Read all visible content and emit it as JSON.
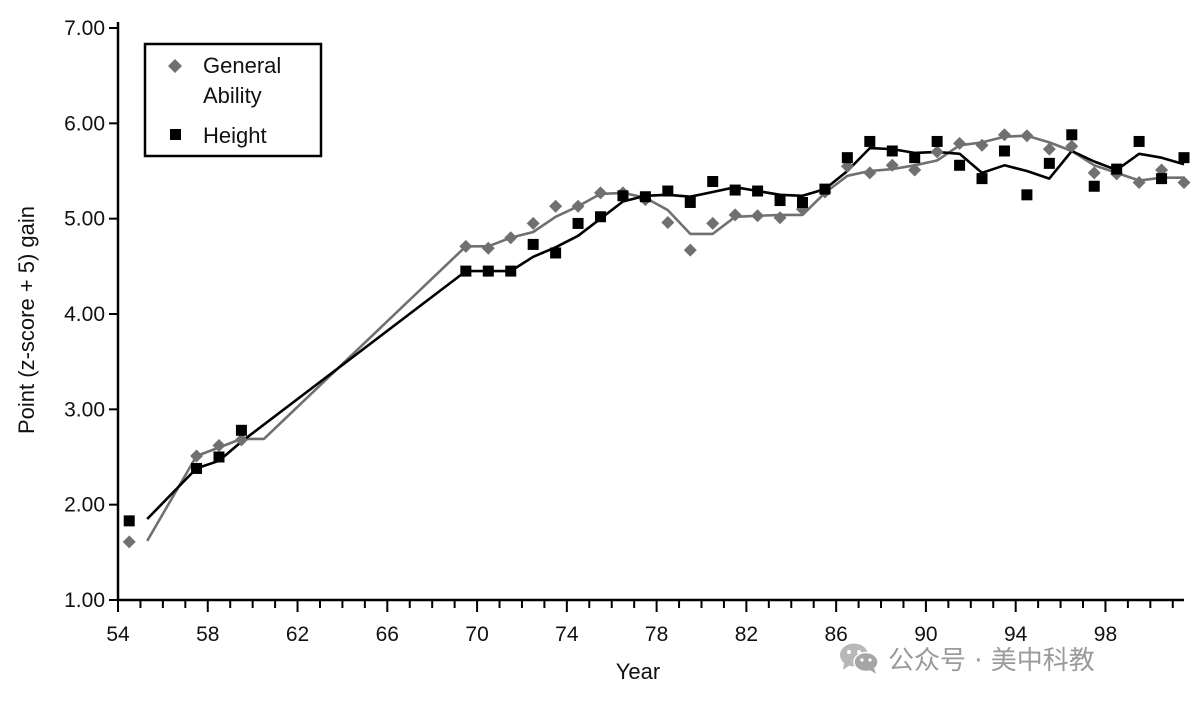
{
  "watermark": {
    "text": "公众号 · 美中科教",
    "icon": "wechat-icon"
  },
  "chart_data": {
    "type": "scatter",
    "xlabel": "Year",
    "ylabel": "Point (z-score + 5) gain",
    "xlim": [
      54,
      101.5
    ],
    "ylim": [
      1.0,
      7.0
    ],
    "xticks": [
      54,
      58,
      62,
      66,
      70,
      74,
      78,
      82,
      86,
      90,
      94,
      98
    ],
    "yticks": [
      1.0,
      2.0,
      3.0,
      4.0,
      5.0,
      6.0,
      7.0
    ],
    "ytick_format": "fixed2",
    "grid": false,
    "legend_position": "top-left",
    "series": [
      {
        "name": "General Ability",
        "marker": "diamond",
        "color": "#707070",
        "points": [
          [
            54.5,
            1.61
          ],
          [
            57.5,
            2.51
          ],
          [
            58.5,
            2.62
          ],
          [
            59.5,
            2.68
          ],
          [
            69.5,
            4.71
          ],
          [
            70.5,
            4.69
          ],
          [
            71.5,
            4.8
          ],
          [
            72.5,
            4.95
          ],
          [
            73.5,
            5.13
          ],
          [
            74.5,
            5.13
          ],
          [
            75.5,
            5.27
          ],
          [
            76.5,
            5.27
          ],
          [
            77.5,
            5.2
          ],
          [
            78.5,
            4.96
          ],
          [
            79.5,
            4.67
          ],
          [
            80.5,
            4.95
          ],
          [
            81.5,
            5.04
          ],
          [
            82.5,
            5.03
          ],
          [
            83.5,
            5.01
          ],
          [
            84.5,
            5.1
          ],
          [
            85.5,
            5.28
          ],
          [
            86.5,
            5.55
          ],
          [
            87.5,
            5.48
          ],
          [
            88.5,
            5.56
          ],
          [
            89.5,
            5.51
          ],
          [
            90.5,
            5.7
          ],
          [
            91.5,
            5.79
          ],
          [
            92.5,
            5.77
          ],
          [
            93.5,
            5.88
          ],
          [
            94.5,
            5.87
          ],
          [
            95.5,
            5.73
          ],
          [
            96.5,
            5.76
          ],
          [
            97.5,
            5.48
          ],
          [
            98.5,
            5.47
          ],
          [
            99.5,
            5.38
          ],
          [
            100.5,
            5.51
          ],
          [
            101.5,
            5.38
          ]
        ],
        "trend": [
          [
            55.3,
            1.62
          ],
          [
            57.5,
            2.51
          ],
          [
            58.5,
            2.6
          ],
          [
            59.5,
            2.69
          ],
          [
            60.5,
            2.69
          ],
          [
            69.5,
            4.71
          ],
          [
            70.5,
            4.71
          ],
          [
            71.5,
            4.8
          ],
          [
            72.5,
            4.86
          ],
          [
            73.5,
            5.02
          ],
          [
            74.5,
            5.13
          ],
          [
            75.5,
            5.26
          ],
          [
            76.5,
            5.27
          ],
          [
            77.5,
            5.22
          ],
          [
            78.5,
            5.09
          ],
          [
            79.5,
            4.84
          ],
          [
            80.5,
            4.84
          ],
          [
            81.5,
            5.02
          ],
          [
            82.5,
            5.03
          ],
          [
            83.5,
            5.04
          ],
          [
            84.5,
            5.04
          ],
          [
            85.5,
            5.27
          ],
          [
            86.5,
            5.45
          ],
          [
            87.5,
            5.5
          ],
          [
            88.5,
            5.52
          ],
          [
            89.5,
            5.56
          ],
          [
            90.5,
            5.61
          ],
          [
            91.5,
            5.77
          ],
          [
            92.5,
            5.8
          ],
          [
            93.5,
            5.86
          ],
          [
            94.5,
            5.87
          ],
          [
            95.5,
            5.8
          ],
          [
            96.5,
            5.71
          ],
          [
            97.5,
            5.56
          ],
          [
            98.5,
            5.48
          ],
          [
            99.5,
            5.4
          ],
          [
            100.5,
            5.43
          ],
          [
            101.5,
            5.43
          ]
        ]
      },
      {
        "name": "Height",
        "marker": "square",
        "color": "#000000",
        "points": [
          [
            54.5,
            1.83
          ],
          [
            57.5,
            2.38
          ],
          [
            58.5,
            2.5
          ],
          [
            59.5,
            2.78
          ],
          [
            69.5,
            4.45
          ],
          [
            70.5,
            4.45
          ],
          [
            71.5,
            4.45
          ],
          [
            72.5,
            4.73
          ],
          [
            73.5,
            4.64
          ],
          [
            74.5,
            4.95
          ],
          [
            75.5,
            5.02
          ],
          [
            76.5,
            5.24
          ],
          [
            77.5,
            5.23
          ],
          [
            78.5,
            5.29
          ],
          [
            79.5,
            5.17
          ],
          [
            80.5,
            5.39
          ],
          [
            81.5,
            5.3
          ],
          [
            82.5,
            5.29
          ],
          [
            83.5,
            5.19
          ],
          [
            84.5,
            5.17
          ],
          [
            85.5,
            5.31
          ],
          [
            86.5,
            5.64
          ],
          [
            87.5,
            5.81
          ],
          [
            88.5,
            5.71
          ],
          [
            89.5,
            5.64
          ],
          [
            90.5,
            5.81
          ],
          [
            91.5,
            5.56
          ],
          [
            92.5,
            5.42
          ],
          [
            93.5,
            5.71
          ],
          [
            94.5,
            5.25
          ],
          [
            95.5,
            5.58
          ],
          [
            96.5,
            5.88
          ],
          [
            97.5,
            5.34
          ],
          [
            98.5,
            5.52
          ],
          [
            99.5,
            5.81
          ],
          [
            100.5,
            5.42
          ],
          [
            101.5,
            5.64
          ]
        ],
        "trend": [
          [
            55.3,
            1.85
          ],
          [
            57.5,
            2.38
          ],
          [
            58.5,
            2.46
          ],
          [
            59.5,
            2.66
          ],
          [
            69.5,
            4.45
          ],
          [
            70.5,
            4.45
          ],
          [
            71.5,
            4.45
          ],
          [
            72.5,
            4.6
          ],
          [
            73.5,
            4.7
          ],
          [
            74.5,
            4.82
          ],
          [
            75.5,
            5.0
          ],
          [
            76.5,
            5.18
          ],
          [
            77.5,
            5.24
          ],
          [
            78.5,
            5.25
          ],
          [
            79.5,
            5.23
          ],
          [
            80.5,
            5.28
          ],
          [
            81.5,
            5.33
          ],
          [
            82.5,
            5.29
          ],
          [
            83.5,
            5.25
          ],
          [
            84.5,
            5.24
          ],
          [
            85.5,
            5.31
          ],
          [
            86.5,
            5.5
          ],
          [
            87.5,
            5.74
          ],
          [
            88.5,
            5.73
          ],
          [
            89.5,
            5.69
          ],
          [
            90.5,
            5.7
          ],
          [
            91.5,
            5.68
          ],
          [
            92.5,
            5.48
          ],
          [
            93.5,
            5.56
          ],
          [
            94.5,
            5.5
          ],
          [
            95.5,
            5.42
          ],
          [
            96.5,
            5.71
          ],
          [
            97.5,
            5.6
          ],
          [
            98.5,
            5.51
          ],
          [
            99.5,
            5.68
          ],
          [
            100.5,
            5.64
          ],
          [
            101.5,
            5.57
          ]
        ]
      }
    ]
  }
}
